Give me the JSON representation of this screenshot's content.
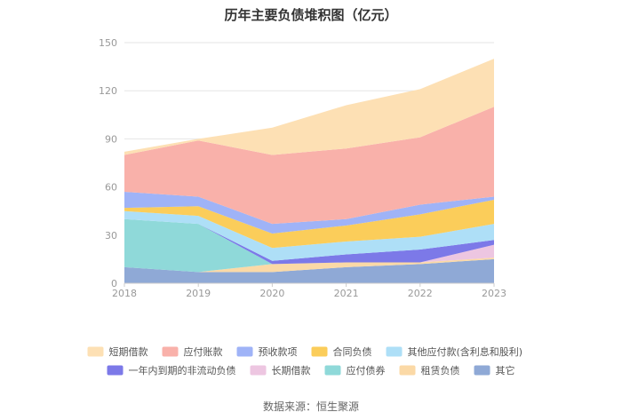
{
  "chart_data": {
    "type": "area",
    "stacked": true,
    "title": "历年主要负债堆积图（亿元）",
    "x": [
      "2018",
      "2019",
      "2020",
      "2021",
      "2022",
      "2023"
    ],
    "ylim": [
      0,
      150
    ],
    "yticks": [
      0,
      30,
      60,
      90,
      120,
      150
    ],
    "grid": true,
    "legend_position": "bottom",
    "series": [
      {
        "name": "其它",
        "color": "#8fa9d6",
        "values": [
          10,
          7,
          7,
          10,
          12,
          15
        ]
      },
      {
        "name": "租赁负债",
        "color": "#fbd9a6",
        "values": [
          0,
          0,
          5,
          3,
          1,
          1
        ]
      },
      {
        "name": "应付债券",
        "color": "#8fd9d9",
        "values": [
          30,
          30,
          0,
          0,
          0,
          0
        ]
      },
      {
        "name": "长期借款",
        "color": "#edc6e1",
        "values": [
          0,
          0,
          0,
          0,
          0,
          8
        ]
      },
      {
        "name": "一年内到期的非流动负债",
        "color": "#7c79e8",
        "values": [
          0,
          0,
          2,
          5,
          8,
          3
        ]
      },
      {
        "name": "其他应付款(含利息和股利)",
        "color": "#aedff7",
        "values": [
          5,
          5,
          8,
          8,
          8,
          10
        ]
      },
      {
        "name": "合同负债",
        "color": "#fbcd5a",
        "values": [
          2,
          6,
          9,
          10,
          14,
          15
        ]
      },
      {
        "name": "预收款项",
        "color": "#9fb3f7",
        "values": [
          10,
          6,
          6,
          4,
          6,
          2
        ]
      },
      {
        "name": "应付账款",
        "color": "#f9b1aa",
        "values": [
          23,
          35,
          43,
          44,
          42,
          56
        ]
      },
      {
        "name": "短期借款",
        "color": "#fde0b4",
        "values": [
          2,
          1,
          17,
          27,
          30,
          30
        ]
      }
    ]
  },
  "legend": {
    "row1": [
      "短期借款",
      "应付账款",
      "预收款项",
      "合同负债",
      "其他应付款(含利息和股利)"
    ],
    "row2": [
      "一年内到期的非流动负债",
      "长期借款",
      "应付债券",
      "租赁负债",
      "其它"
    ]
  },
  "source": "数据来源：恒生聚源"
}
